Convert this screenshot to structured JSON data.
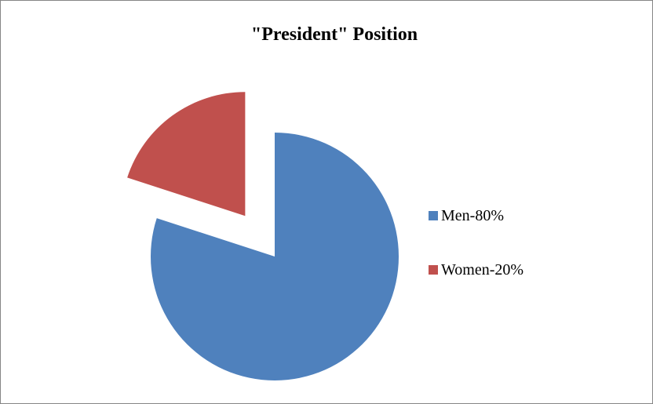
{
  "chart_data": {
    "type": "pie",
    "title": "\"President\" Position",
    "categories": [
      "Men-80%",
      "Women-20%"
    ],
    "values": [
      80,
      20
    ],
    "colors": [
      "#4f81bd",
      "#c0504d"
    ],
    "exploded": [
      "Women-20%"
    ],
    "legend_position": "right"
  }
}
